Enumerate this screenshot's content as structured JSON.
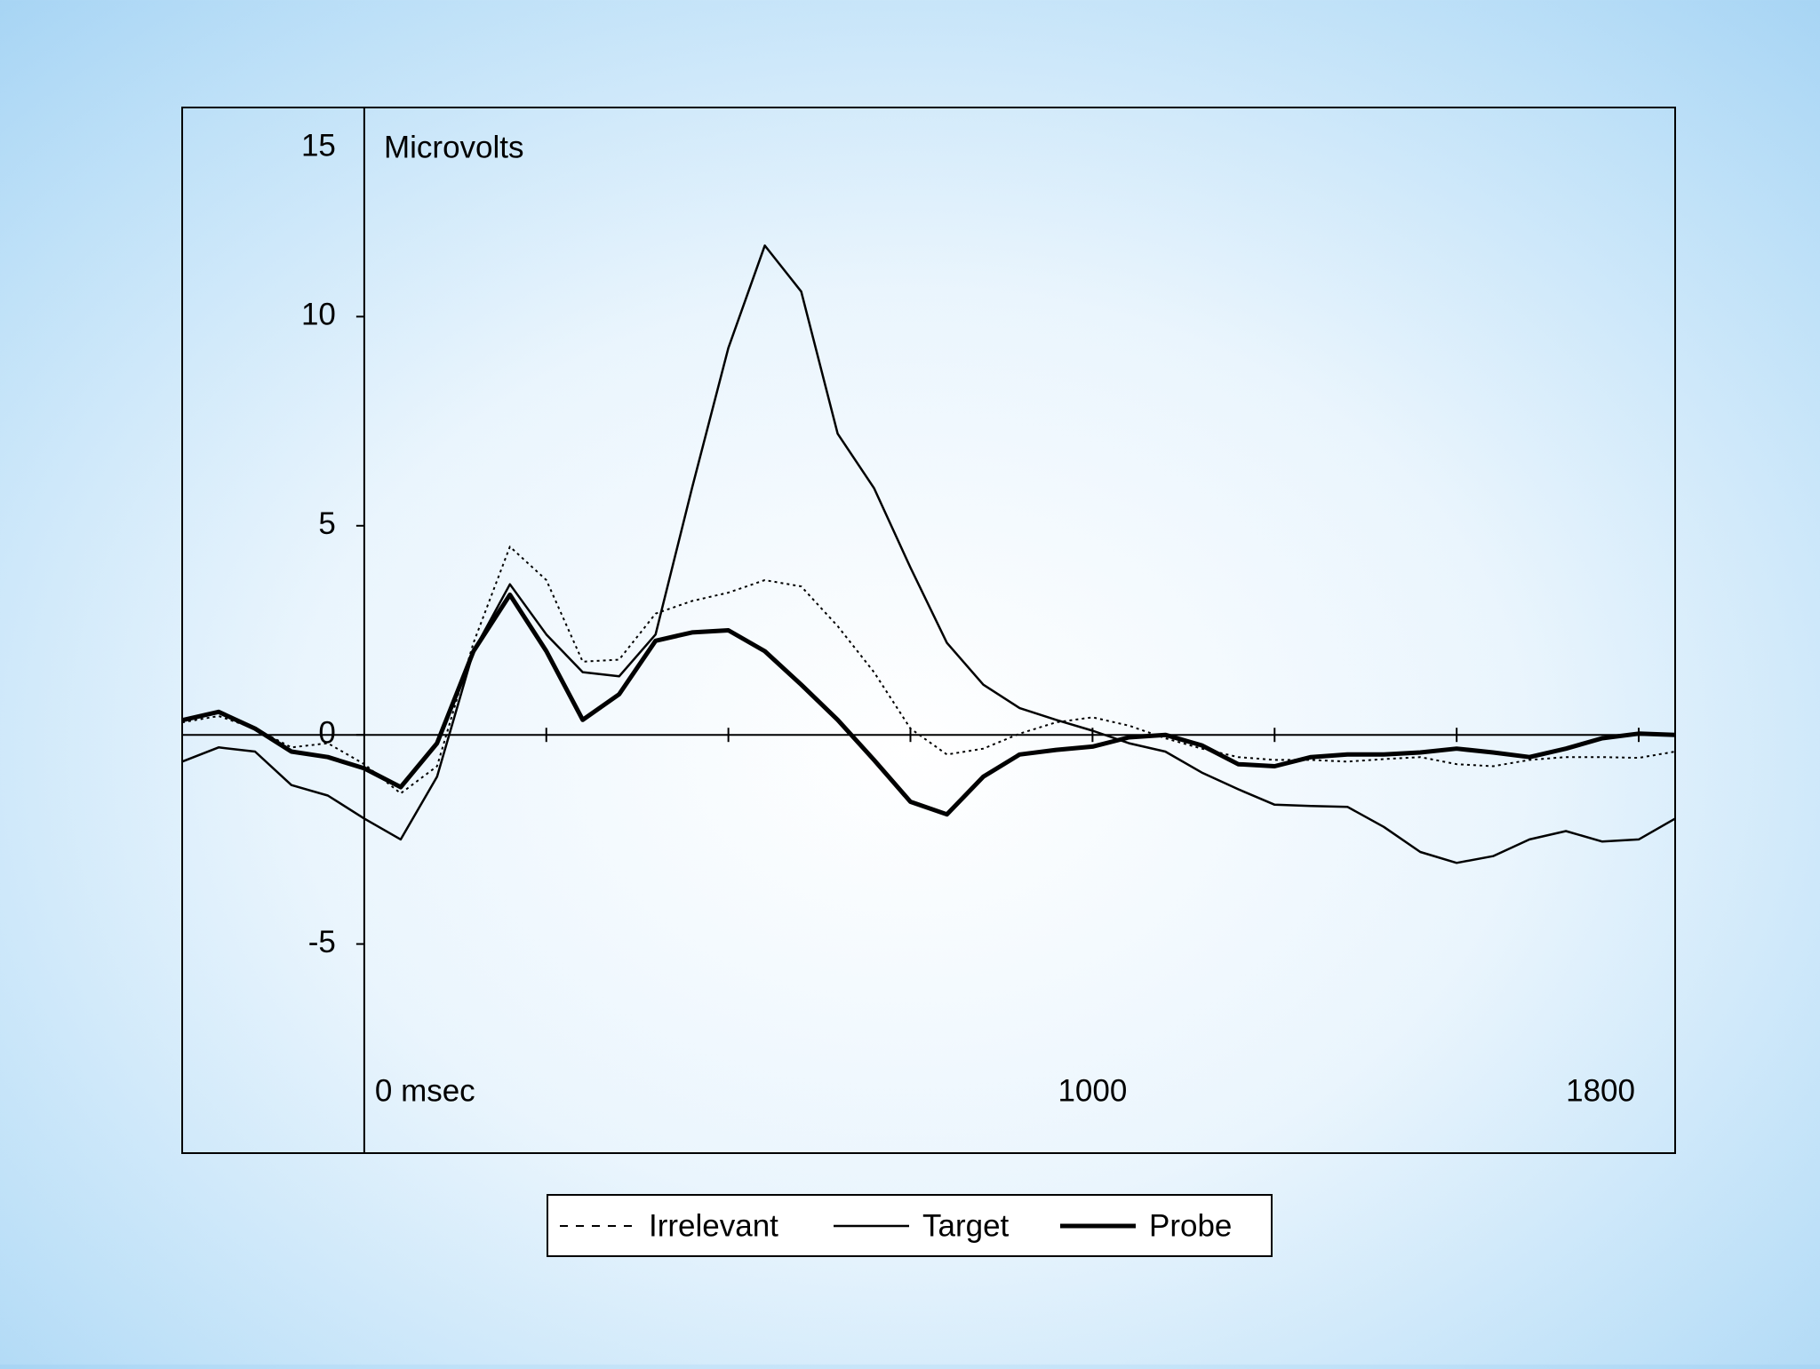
{
  "chart_data": {
    "type": "line",
    "y_label": "Microvolts",
    "x": [
      -250,
      -200,
      -150,
      -100,
      -50,
      0,
      50,
      100,
      150,
      200,
      250,
      300,
      350,
      400,
      450,
      500,
      550,
      600,
      650,
      700,
      750,
      800,
      850,
      900,
      950,
      1000,
      1050,
      1100,
      1150,
      1200,
      1250,
      1300,
      1350,
      1400,
      1450,
      1500,
      1550,
      1600,
      1650,
      1700,
      1750,
      1800
    ],
    "series": [
      {
        "name": "Irrelevant",
        "color": "#000000",
        "dash": "dotted",
        "width": 2,
        "values": [
          0.3,
          0.45,
          0.15,
          -0.3,
          -0.2,
          -0.7,
          -1.4,
          -0.75,
          2.2,
          4.5,
          3.7,
          1.75,
          1.8,
          2.9,
          3.2,
          3.4,
          3.7,
          3.55,
          2.6,
          1.5,
          0.15,
          -0.47,
          -0.33,
          0.03,
          0.3,
          0.42,
          0.22,
          -0.08,
          -0.33,
          -0.53,
          -0.6,
          -0.6,
          -0.64,
          -0.58,
          -0.53,
          -0.7,
          -0.75,
          -0.6,
          -0.53,
          -0.53,
          -0.55,
          -0.4
        ]
      },
      {
        "name": "Target",
        "color": "#000000",
        "dash": "solid",
        "width": 2.5,
        "values": [
          -0.64,
          -0.3,
          -0.4,
          -1.2,
          -1.45,
          -2.0,
          -2.5,
          -1.0,
          2.0,
          3.6,
          2.4,
          1.5,
          1.4,
          2.4,
          5.9,
          9.25,
          11.7,
          10.6,
          7.2,
          5.9,
          4.0,
          2.2,
          1.2,
          0.64,
          0.36,
          0.1,
          -0.2,
          -0.4,
          -0.9,
          -1.3,
          -1.67,
          -1.7,
          -1.72,
          -2.2,
          -2.8,
          -3.06,
          -2.9,
          -2.5,
          -2.3,
          -2.55,
          -2.5,
          -2.0
        ]
      },
      {
        "name": "Probe",
        "color": "#000000",
        "dash": "solid",
        "width": 5,
        "values": [
          0.35,
          0.55,
          0.15,
          -0.4,
          -0.53,
          -0.8,
          -1.25,
          -0.2,
          2.0,
          3.35,
          2.0,
          0.36,
          0.97,
          2.25,
          2.45,
          2.5,
          2.0,
          1.2,
          0.36,
          -0.6,
          -1.6,
          -1.9,
          -1.0,
          -0.47,
          -0.36,
          -0.28,
          -0.06,
          0,
          -0.25,
          -0.7,
          -0.75,
          -0.53,
          -0.47,
          -0.47,
          -0.42,
          -0.33,
          -0.42,
          -0.53,
          -0.33,
          -0.08,
          0.03,
          0
        ]
      }
    ],
    "xlim": [
      -250,
      1800
    ],
    "xticks": [
      {
        "value": 0,
        "label": "0  msec"
      },
      1000,
      1800
    ],
    "xminor_ticks": [
      250,
      500,
      750,
      1000,
      1250,
      1500,
      1750
    ],
    "ylim": [
      -10,
      15
    ],
    "yticks": [
      -5,
      0,
      5,
      10,
      15
    ],
    "legend": "bottom"
  }
}
